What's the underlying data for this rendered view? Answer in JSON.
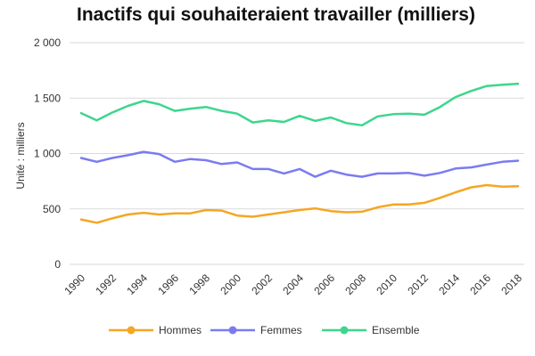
{
  "chart_data": {
    "type": "line",
    "title": "Inactifs qui souhaiteraient travailler (milliers)",
    "ylabel": "Unité : milliers",
    "xlabel": "",
    "ylim": [
      0,
      2000
    ],
    "y_ticks": [
      "0",
      "500",
      "1 000",
      "1 500",
      "2 000"
    ],
    "y_tick_values": [
      0,
      500,
      1000,
      1500,
      2000
    ],
    "x_ticks": [
      "1990",
      "1992",
      "1994",
      "1996",
      "1998",
      "2000",
      "2002",
      "2004",
      "2006",
      "2008",
      "2010",
      "2012",
      "2014",
      "2016",
      "2018"
    ],
    "x": [
      1990,
      1991,
      1992,
      1993,
      1994,
      1995,
      1996,
      1997,
      1998,
      1999,
      2000,
      2001,
      2002,
      2003,
      2004,
      2005,
      2006,
      2007,
      2008,
      2009,
      2010,
      2011,
      2012,
      2013,
      2014,
      2015,
      2016,
      2017,
      2018
    ],
    "grid": true,
    "legend_position": "bottom",
    "series": [
      {
        "name": "Hommes",
        "color": "#f5a623",
        "values": [
          405,
          375,
          415,
          450,
          465,
          450,
          460,
          460,
          490,
          485,
          440,
          430,
          450,
          470,
          490,
          505,
          480,
          470,
          475,
          515,
          540,
          540,
          555,
          600,
          650,
          695,
          715,
          700,
          705
        ]
      },
      {
        "name": "Femmes",
        "color": "#7b7bf0",
        "values": [
          960,
          925,
          960,
          985,
          1015,
          995,
          925,
          950,
          940,
          905,
          920,
          860,
          860,
          820,
          860,
          790,
          845,
          810,
          790,
          820,
          820,
          825,
          800,
          825,
          865,
          875,
          900,
          925,
          935
        ]
      },
      {
        "name": "Ensemble",
        "color": "#3dd68c",
        "values": [
          1365,
          1300,
          1370,
          1430,
          1475,
          1445,
          1385,
          1405,
          1420,
          1385,
          1360,
          1280,
          1300,
          1285,
          1340,
          1295,
          1325,
          1275,
          1255,
          1335,
          1355,
          1360,
          1350,
          1420,
          1510,
          1565,
          1610,
          1620,
          1630
        ]
      }
    ]
  }
}
